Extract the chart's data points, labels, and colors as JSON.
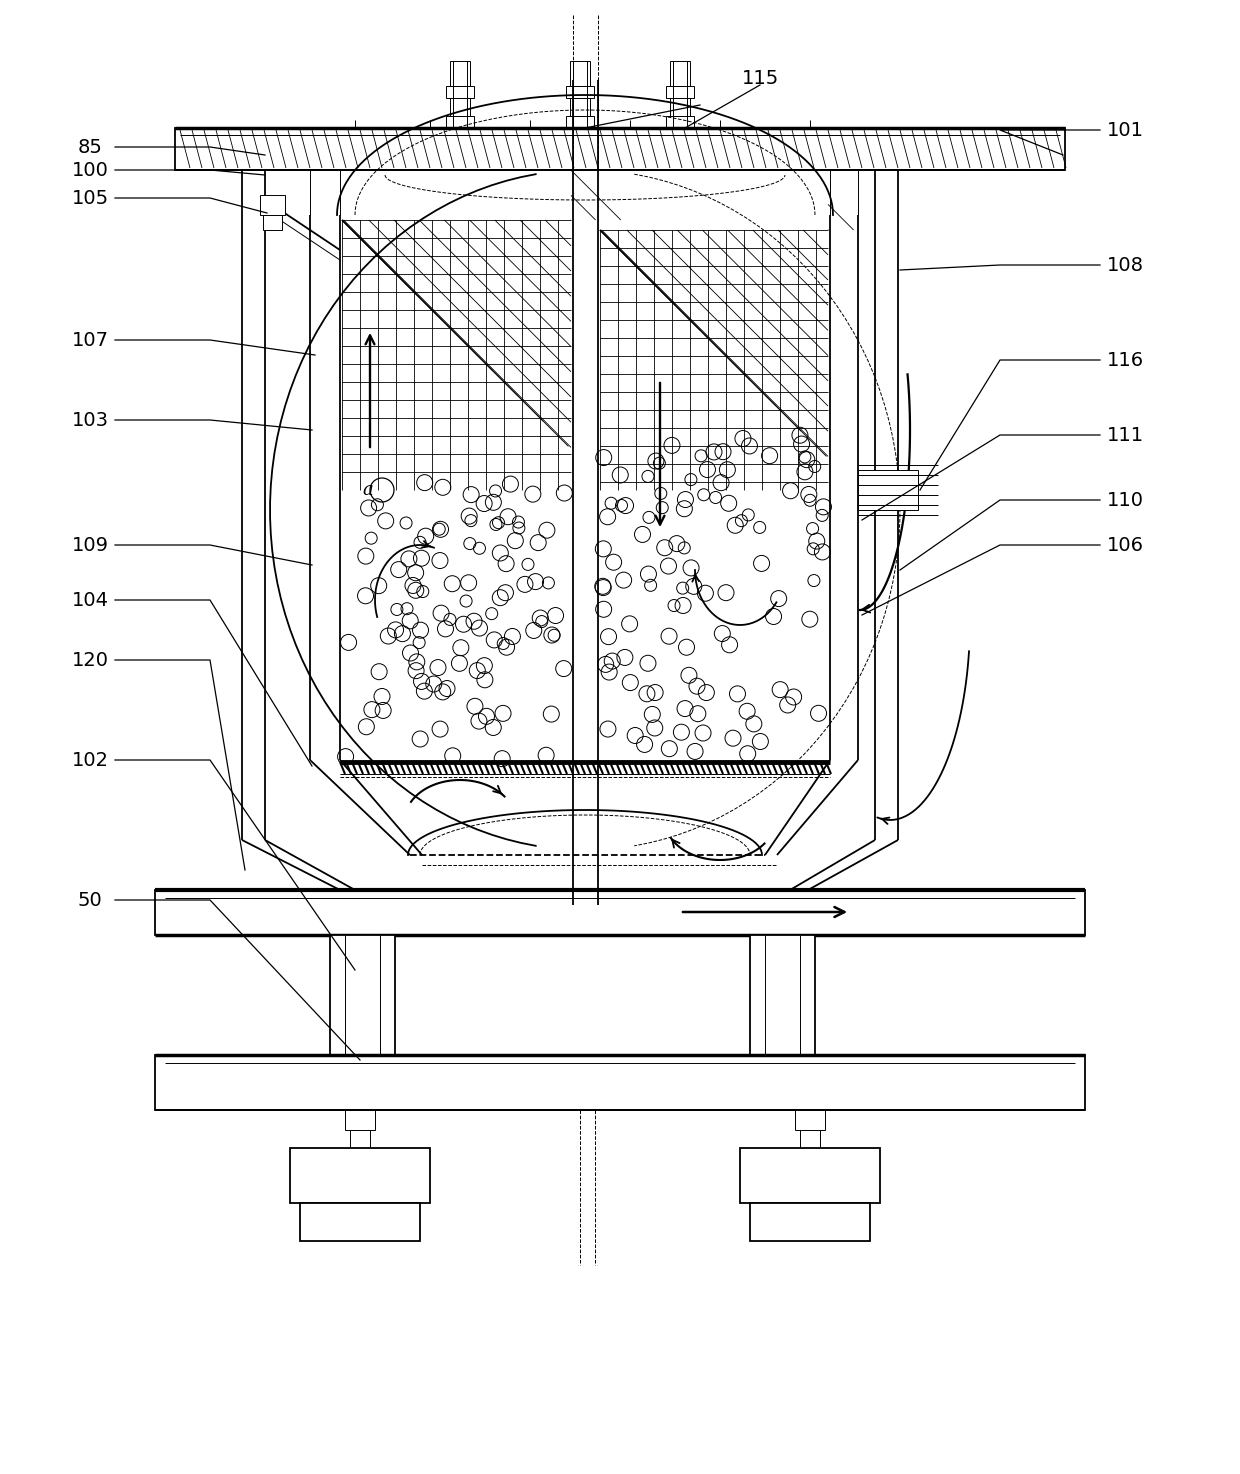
{
  "line_color": "#000000",
  "bg_color": "#ffffff",
  "lw_main": 1.3,
  "lw_thin": 0.7,
  "lw_thick": 2.5,
  "fig_w": 12.4,
  "fig_h": 14.74,
  "dpi": 100
}
